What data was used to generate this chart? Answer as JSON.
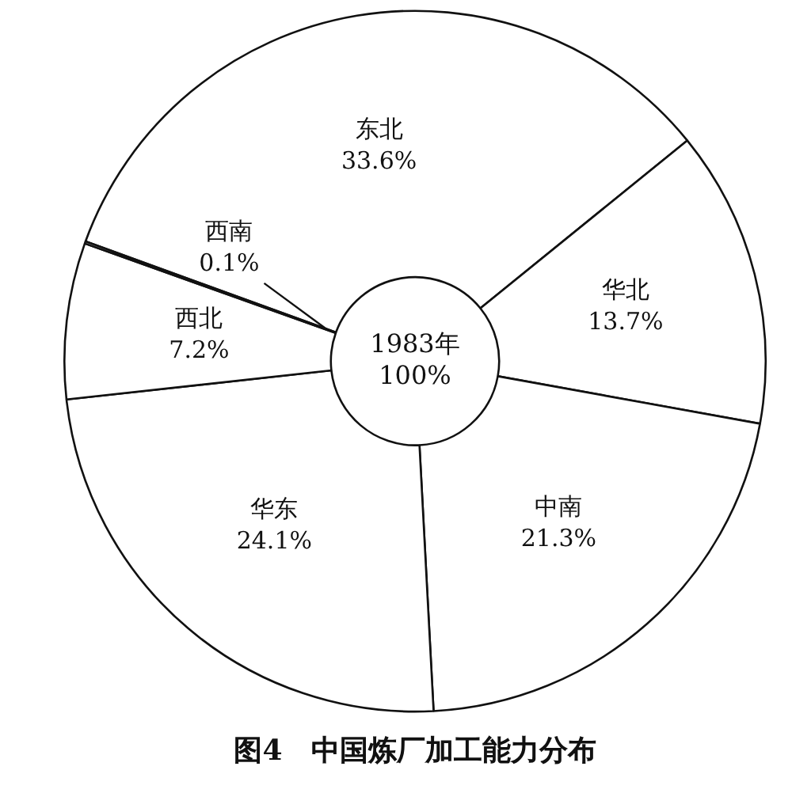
{
  "chart_data": {
    "type": "donut",
    "title": "图4　中国炼厂加工能力分布",
    "categories": [
      "东北",
      "华北",
      "中南",
      "华东",
      "西北",
      "西南"
    ],
    "values": [
      33.6,
      13.7,
      21.3,
      24.1,
      7.2,
      0.1
    ],
    "colors": [
      "#ffffff",
      "#ffffff",
      "#ffffff",
      "#ffffff",
      "#ffffff",
      "#ffffff"
    ],
    "value_labels": [
      "33.6%",
      "13.7%",
      "21.3%",
      "24.1%",
      "7.2%",
      "0.1%"
    ],
    "annotations": [
      "1983年",
      "100%"
    ],
    "legend": false
  }
}
